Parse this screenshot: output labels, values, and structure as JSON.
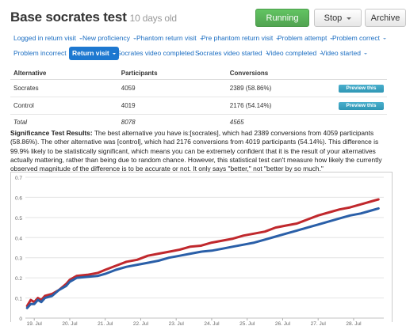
{
  "header": {
    "title": "Base socrates test",
    "age": "10 days old",
    "running_label": "Running",
    "stop_label": "Stop",
    "archive_label": "Archive"
  },
  "pills": [
    {
      "label": "Logged in return visit",
      "active": false
    },
    {
      "label": "New proficiency",
      "active": false
    },
    {
      "label": "Phantom return visit",
      "active": false
    },
    {
      "label": "Pre phantom return visit",
      "active": false
    },
    {
      "label": "Problem attempt",
      "active": false
    },
    {
      "label": "Problem correct",
      "active": false
    },
    {
      "label": "Problem incorrect",
      "active": false
    },
    {
      "label": "Return visit",
      "active": true
    },
    {
      "label": "Socrates video completed",
      "active": false
    },
    {
      "label": "Socrates video started",
      "active": false
    },
    {
      "label": "Video completed",
      "active": false
    },
    {
      "label": "Video started",
      "active": false
    }
  ],
  "table": {
    "headers": [
      "Alternative",
      "Participants",
      "Conversions",
      ""
    ],
    "rows": [
      {
        "alternative": "Socrates",
        "participants": "4059",
        "conversions": "2389 (58.86%)",
        "action": "Preview this"
      },
      {
        "alternative": "Control",
        "participants": "4019",
        "conversions": "2176 (54.14%)",
        "action": "Preview this"
      }
    ],
    "total": {
      "label": "Total",
      "participants": "8078",
      "conversions": "4565"
    }
  },
  "significance": {
    "heading": "Significance Test Results:",
    "body": " The best alternative you have is:[socrates], which had 2389 conversions from 4059 participants (58.86%). The other alternative was [control], which had 2176 conversions from 4019 participants (54.14%). This difference is 99.9% likely to be statistically significant, which means you can be extremely confident that it is the result of your alternatives actually mattering, rather than being due to random chance. However, this statistical test can't measure how likely the currently observed magnitude of the difference is to be accurate or not. It only says \"better,\" not \"better by so much.\""
  },
  "chart_data": {
    "type": "line",
    "x_tick_labels": [
      "19. Jul",
      "20. Jul",
      "21. Jul",
      "22. Jul",
      "23. Jul",
      "24. Jul",
      "25. Jul",
      "26. Jul",
      "27. Jul",
      "28. Jul"
    ],
    "y_tick_labels": [
      "0",
      "0.1",
      "0.2",
      "0.3",
      "0.4",
      "0.5",
      "0.6",
      "0.7"
    ],
    "ylim": [
      0,
      0.7
    ],
    "xlim": [
      18.75,
      28.85
    ],
    "grid": true,
    "series": [
      {
        "color": "#c0282d",
        "x": [
          18.8,
          18.9,
          19.0,
          19.1,
          19.2,
          19.3,
          19.5,
          19.7,
          19.9,
          20.0,
          20.2,
          20.5,
          20.8,
          21.0,
          21.3,
          21.6,
          21.9,
          22.2,
          22.5,
          22.8,
          23.1,
          23.4,
          23.7,
          24.0,
          24.3,
          24.6,
          24.9,
          25.2,
          25.5,
          25.8,
          26.1,
          26.4,
          26.7,
          27.0,
          27.3,
          27.6,
          27.9,
          28.2,
          28.5,
          28.7
        ],
        "values": [
          0.06,
          0.09,
          0.08,
          0.1,
          0.09,
          0.11,
          0.12,
          0.14,
          0.17,
          0.19,
          0.21,
          0.215,
          0.225,
          0.24,
          0.26,
          0.28,
          0.29,
          0.31,
          0.32,
          0.33,
          0.34,
          0.355,
          0.36,
          0.375,
          0.385,
          0.395,
          0.41,
          0.42,
          0.43,
          0.45,
          0.46,
          0.47,
          0.49,
          0.51,
          0.525,
          0.54,
          0.55,
          0.565,
          0.58,
          0.59
        ]
      },
      {
        "color": "#2a5fa8",
        "x": [
          18.8,
          18.9,
          19.0,
          19.1,
          19.2,
          19.3,
          19.5,
          19.7,
          19.9,
          20.0,
          20.2,
          20.5,
          20.8,
          21.0,
          21.3,
          21.6,
          21.9,
          22.2,
          22.5,
          22.8,
          23.1,
          23.4,
          23.7,
          24.0,
          24.3,
          24.6,
          24.9,
          25.2,
          25.5,
          25.8,
          26.1,
          26.4,
          26.7,
          27.0,
          27.3,
          27.6,
          27.9,
          28.2,
          28.5,
          28.7
        ],
        "values": [
          0.05,
          0.07,
          0.07,
          0.09,
          0.08,
          0.1,
          0.11,
          0.14,
          0.16,
          0.18,
          0.2,
          0.205,
          0.21,
          0.22,
          0.24,
          0.255,
          0.265,
          0.275,
          0.285,
          0.3,
          0.31,
          0.32,
          0.33,
          0.335,
          0.345,
          0.355,
          0.365,
          0.375,
          0.39,
          0.405,
          0.42,
          0.435,
          0.45,
          0.465,
          0.48,
          0.495,
          0.51,
          0.52,
          0.535,
          0.545
        ]
      }
    ]
  }
}
